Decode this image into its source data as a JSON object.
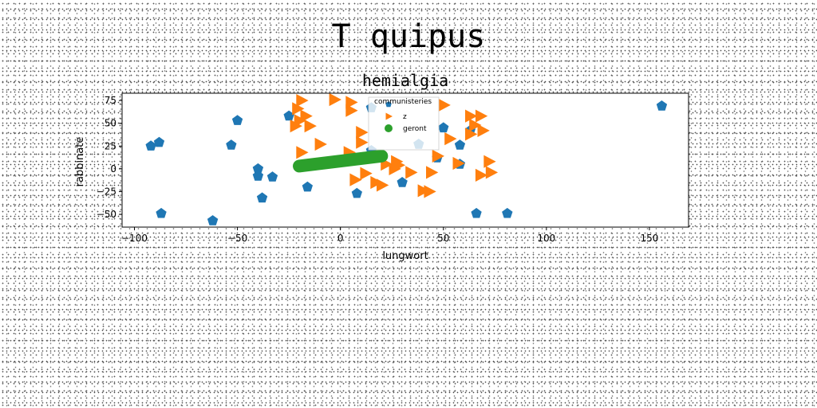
{
  "figure": {
    "suptitle": "T quipus"
  },
  "chart_data": {
    "type": "scatter",
    "title": "hemialgia",
    "xlabel": "lungwort",
    "ylabel": "rabbinate",
    "xlim": [
      -106,
      169
    ],
    "ylim": [
      -64,
      83
    ],
    "xticks": [
      -100,
      -50,
      0,
      50,
      100,
      150
    ],
    "yticks": [
      -50,
      -25,
      0,
      25,
      50,
      75
    ],
    "grid": false,
    "legend": {
      "placement": "upper-center-inside"
    },
    "series": [
      {
        "name": "communisteries",
        "marker": "pentagon",
        "color": "#1f77b4",
        "points": [
          [
            -92,
            25
          ],
          [
            -88,
            29
          ],
          [
            -87,
            -49
          ],
          [
            -62,
            -57
          ],
          [
            -53,
            26
          ],
          [
            -50,
            53
          ],
          [
            -40,
            0
          ],
          [
            -40,
            -8
          ],
          [
            -38,
            -32
          ],
          [
            -33,
            -9
          ],
          [
            -25,
            58
          ],
          [
            -16,
            -20
          ],
          [
            8,
            -27
          ],
          [
            15,
            67
          ],
          [
            15,
            20
          ],
          [
            30,
            -15
          ],
          [
            38,
            27
          ],
          [
            47,
            12
          ],
          [
            50,
            45
          ],
          [
            58,
            26
          ],
          [
            58,
            5
          ],
          [
            63,
            42
          ],
          [
            66,
            -49
          ],
          [
            81,
            -49
          ],
          [
            156,
            69
          ]
        ]
      },
      {
        "name": "z",
        "marker": "triangle-right",
        "color": "#ff7f0e",
        "points": [
          [
            -21,
            66
          ],
          [
            -19,
            75
          ],
          [
            -20,
            53
          ],
          [
            -17,
            58
          ],
          [
            -22,
            47
          ],
          [
            -15,
            47
          ],
          [
            -19,
            18
          ],
          [
            -10,
            27
          ],
          [
            -3,
            76
          ],
          [
            5,
            73
          ],
          [
            5,
            64
          ],
          [
            4,
            18
          ],
          [
            7,
            -12
          ],
          [
            10,
            29
          ],
          [
            10,
            40
          ],
          [
            12,
            -5
          ],
          [
            17,
            -15
          ],
          [
            20,
            -18
          ],
          [
            22,
            5
          ],
          [
            26,
            0
          ],
          [
            27,
            8
          ],
          [
            28,
            4
          ],
          [
            34,
            -4
          ],
          [
            40,
            -24
          ],
          [
            43,
            -25
          ],
          [
            44,
            -4
          ],
          [
            47,
            14
          ],
          [
            50,
            70
          ],
          [
            53,
            33
          ],
          [
            57,
            6
          ],
          [
            63,
            58
          ],
          [
            63,
            38
          ],
          [
            65,
            48
          ],
          [
            68,
            58
          ],
          [
            69,
            42
          ],
          [
            68,
            -7
          ],
          [
            72,
            8
          ],
          [
            73,
            -4
          ]
        ]
      },
      {
        "name": "geront",
        "marker": "line",
        "color": "#2ca02c",
        "points": [
          [
            -20,
            3
          ],
          [
            20,
            14
          ]
        ]
      }
    ]
  }
}
